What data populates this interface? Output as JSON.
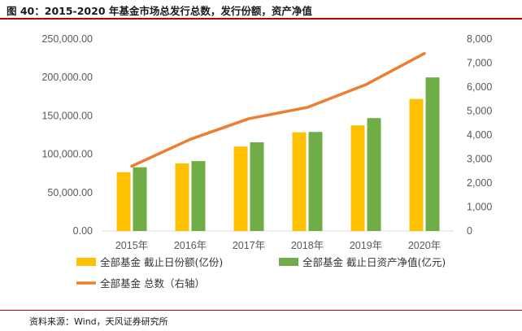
{
  "header": {
    "title": "图 40：2015-2020 年基金市场总发行总数，发行份额，资产净值"
  },
  "footer": {
    "source": "资料来源：Wind，天风证券研究所"
  },
  "chart_data": {
    "type": "bar",
    "categories": [
      "2015年",
      "2016年",
      "2017年",
      "2018年",
      "2019年",
      "2020年"
    ],
    "series": [
      {
        "name": "全部基金 截止日份额(亿份)",
        "type": "bar",
        "axis": "left",
        "color": "#FFC000",
        "values": [
          76500,
          88000,
          110000,
          128500,
          137500,
          172000
        ]
      },
      {
        "name": "全部基金 截止日资产净值(亿元)",
        "type": "bar",
        "axis": "left",
        "color": "#70AD47",
        "values": [
          83000,
          91000,
          115500,
          129000,
          147000,
          200000
        ]
      },
      {
        "name": "全部基金 总数（右轴）",
        "type": "line",
        "axis": "right",
        "color": "#ED7D31",
        "values": [
          2700,
          3820,
          4680,
          5150,
          6100,
          7400
        ]
      }
    ],
    "y_left": {
      "min": 0,
      "max": 250000,
      "step": 50000,
      "tick_labels": [
        "0.00",
        "50,000.00",
        "100,000.00",
        "150,000.00",
        "200,000.00",
        "250,000.00"
      ]
    },
    "y_right": {
      "min": 0,
      "max": 8000,
      "step": 1000,
      "tick_labels": [
        "0",
        "1,000",
        "2,000",
        "3,000",
        "4,000",
        "5,000",
        "6,000",
        "7,000",
        "8,000"
      ]
    },
    "legend_placement": "bottom",
    "grid": false
  }
}
